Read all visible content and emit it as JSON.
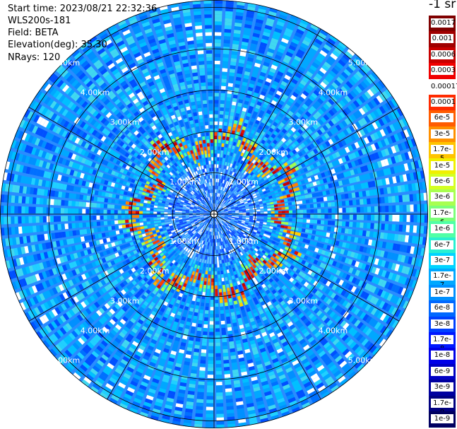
{
  "info": {
    "start_time": "Start time: 2023/08/21 22:32:36",
    "device": "WLS200s-181",
    "field": "Field: BETA",
    "elevation": "Elevation(deg): 35.30",
    "nrays": "NRays: 120"
  },
  "colorbar": {
    "unit_label": "-1 sr",
    "labels": [
      "0.0017",
      "0.001",
      "0.0006",
      "0.0003",
      "0.00017",
      "0.0001",
      "6e-5",
      "3e-5",
      "1.7e-5",
      "1e-5",
      "6e-6",
      "3e-6",
      "1.7e-6",
      "1e-6",
      "6e-7",
      "3e-7",
      "1.7e-7",
      "1e-7",
      "6e-8",
      "3e-8",
      "1.7e-8",
      "1e-8",
      "6e-9",
      "3e-9",
      "1.7e-9",
      "1e-9"
    ],
    "colors": [
      "#7f0000",
      "#a00000",
      "#c80000",
      "#f00000",
      "#ffffff",
      "#ff2a00",
      "#ff5c00",
      "#ff9000",
      "#ffc400",
      "#f0f000",
      "#d4ff22",
      "#a8ff50",
      "#7cff7a",
      "#50ffa6",
      "#28f0d2",
      "#00d4ff",
      "#00a8ff",
      "#0090ff",
      "#0068ff",
      "#0040ff",
      "#0018ff",
      "#0000e8",
      "#0000c4",
      "#0000a0",
      "#000080",
      "#000060"
    ]
  },
  "range_labels": [
    "1.00km",
    "2.00km",
    "3.00km",
    "4.00km",
    "5.00km"
  ],
  "ppi": {
    "rays": 120,
    "range_rings_km": [
      1,
      2,
      3,
      4,
      5
    ],
    "max_range_km": 5.2
  }
}
